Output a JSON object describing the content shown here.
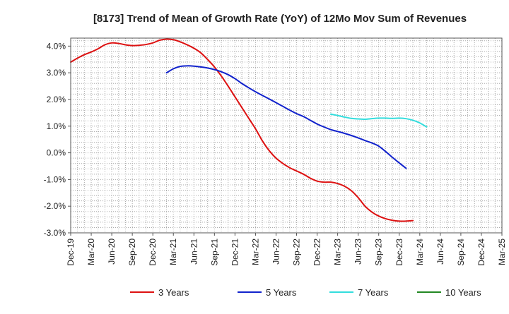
{
  "chart_data": {
    "type": "line",
    "title": "[8173]  Trend of Mean of Growth Rate (YoY) of 12Mo Mov Sum of Revenues",
    "xlabel": "",
    "ylabel": "",
    "ylim": [
      -3.0,
      4.3
    ],
    "yticks": [
      4.0,
      3.0,
      2.0,
      1.0,
      0.0,
      -1.0,
      -2.0,
      -3.0
    ],
    "ytick_labels": [
      "4.0%",
      "3.0%",
      "2.0%",
      "1.0%",
      "0.0%",
      "-1.0%",
      "-2.0%",
      "-3.0%"
    ],
    "x_start": "Dec-19",
    "x_months_span": 63,
    "xtick_labels": [
      "Dec-19",
      "Mar-20",
      "Jun-20",
      "Sep-20",
      "Dec-20",
      "Mar-21",
      "Jun-21",
      "Sep-21",
      "Dec-21",
      "Mar-22",
      "Jun-22",
      "Sep-22",
      "Dec-22",
      "Mar-23",
      "Jun-23",
      "Sep-23",
      "Dec-23",
      "Mar-24",
      "Jun-24",
      "Sep-24",
      "Dec-24",
      "Mar-25"
    ],
    "grid": true,
    "legend_position": "bottom",
    "series": [
      {
        "name": "3 Years",
        "color": "#dd1111",
        "points": [
          [
            0,
            3.4
          ],
          [
            1,
            3.55
          ],
          [
            2,
            3.68
          ],
          [
            3,
            3.78
          ],
          [
            4,
            3.9
          ],
          [
            5,
            4.05
          ],
          [
            6,
            4.12
          ],
          [
            7,
            4.1
          ],
          [
            8,
            4.05
          ],
          [
            9,
            4.02
          ],
          [
            10,
            4.03
          ],
          [
            11,
            4.06
          ],
          [
            12,
            4.12
          ],
          [
            13,
            4.22
          ],
          [
            14,
            4.26
          ],
          [
            15,
            4.24
          ],
          [
            16,
            4.16
          ],
          [
            17,
            4.05
          ],
          [
            18,
            3.92
          ],
          [
            19,
            3.75
          ],
          [
            20,
            3.5
          ],
          [
            21,
            3.22
          ],
          [
            22,
            2.88
          ],
          [
            23,
            2.5
          ],
          [
            24,
            2.1
          ],
          [
            25,
            1.7
          ],
          [
            26,
            1.3
          ],
          [
            27,
            0.9
          ],
          [
            28,
            0.45
          ],
          [
            29,
            0.08
          ],
          [
            30,
            -0.2
          ],
          [
            31,
            -0.4
          ],
          [
            32,
            -0.56
          ],
          [
            33,
            -0.68
          ],
          [
            34,
            -0.8
          ],
          [
            35,
            -0.95
          ],
          [
            36,
            -1.06
          ],
          [
            37,
            -1.1
          ],
          [
            38,
            -1.1
          ],
          [
            39,
            -1.15
          ],
          [
            40,
            -1.25
          ],
          [
            41,
            -1.42
          ],
          [
            42,
            -1.68
          ],
          [
            43,
            -2.0
          ],
          [
            44,
            -2.22
          ],
          [
            45,
            -2.37
          ],
          [
            46,
            -2.47
          ],
          [
            47,
            -2.53
          ],
          [
            48,
            -2.56
          ],
          [
            49,
            -2.56
          ],
          [
            50,
            -2.54
          ]
        ]
      },
      {
        "name": "5 Years",
        "color": "#1122cc",
        "points": [
          [
            14,
            3.0
          ],
          [
            15,
            3.15
          ],
          [
            16,
            3.24
          ],
          [
            17,
            3.26
          ],
          [
            18,
            3.25
          ],
          [
            19,
            3.22
          ],
          [
            20,
            3.18
          ],
          [
            21,
            3.12
          ],
          [
            22,
            3.04
          ],
          [
            23,
            2.93
          ],
          [
            24,
            2.78
          ],
          [
            25,
            2.6
          ],
          [
            26,
            2.44
          ],
          [
            27,
            2.29
          ],
          [
            28,
            2.15
          ],
          [
            29,
            2.02
          ],
          [
            30,
            1.88
          ],
          [
            31,
            1.74
          ],
          [
            32,
            1.6
          ],
          [
            33,
            1.47
          ],
          [
            34,
            1.36
          ],
          [
            35,
            1.22
          ],
          [
            36,
            1.08
          ],
          [
            37,
            0.97
          ],
          [
            38,
            0.87
          ],
          [
            39,
            0.8
          ],
          [
            40,
            0.73
          ],
          [
            41,
            0.65
          ],
          [
            42,
            0.56
          ],
          [
            43,
            0.46
          ],
          [
            44,
            0.37
          ],
          [
            45,
            0.25
          ],
          [
            46,
            0.05
          ],
          [
            47,
            -0.17
          ],
          [
            48,
            -0.38
          ],
          [
            49,
            -0.58
          ]
        ]
      },
      {
        "name": "7 Years",
        "color": "#33dddd",
        "points": [
          [
            38,
            1.45
          ],
          [
            39,
            1.4
          ],
          [
            40,
            1.34
          ],
          [
            41,
            1.29
          ],
          [
            42,
            1.27
          ],
          [
            43,
            1.26
          ],
          [
            44,
            1.28
          ],
          [
            45,
            1.3
          ],
          [
            46,
            1.3
          ],
          [
            47,
            1.29
          ],
          [
            48,
            1.3
          ],
          [
            49,
            1.28
          ],
          [
            50,
            1.22
          ],
          [
            51,
            1.12
          ],
          [
            52,
            0.97
          ]
        ]
      },
      {
        "name": "10 Years",
        "color": "#228822",
        "points": []
      }
    ]
  }
}
